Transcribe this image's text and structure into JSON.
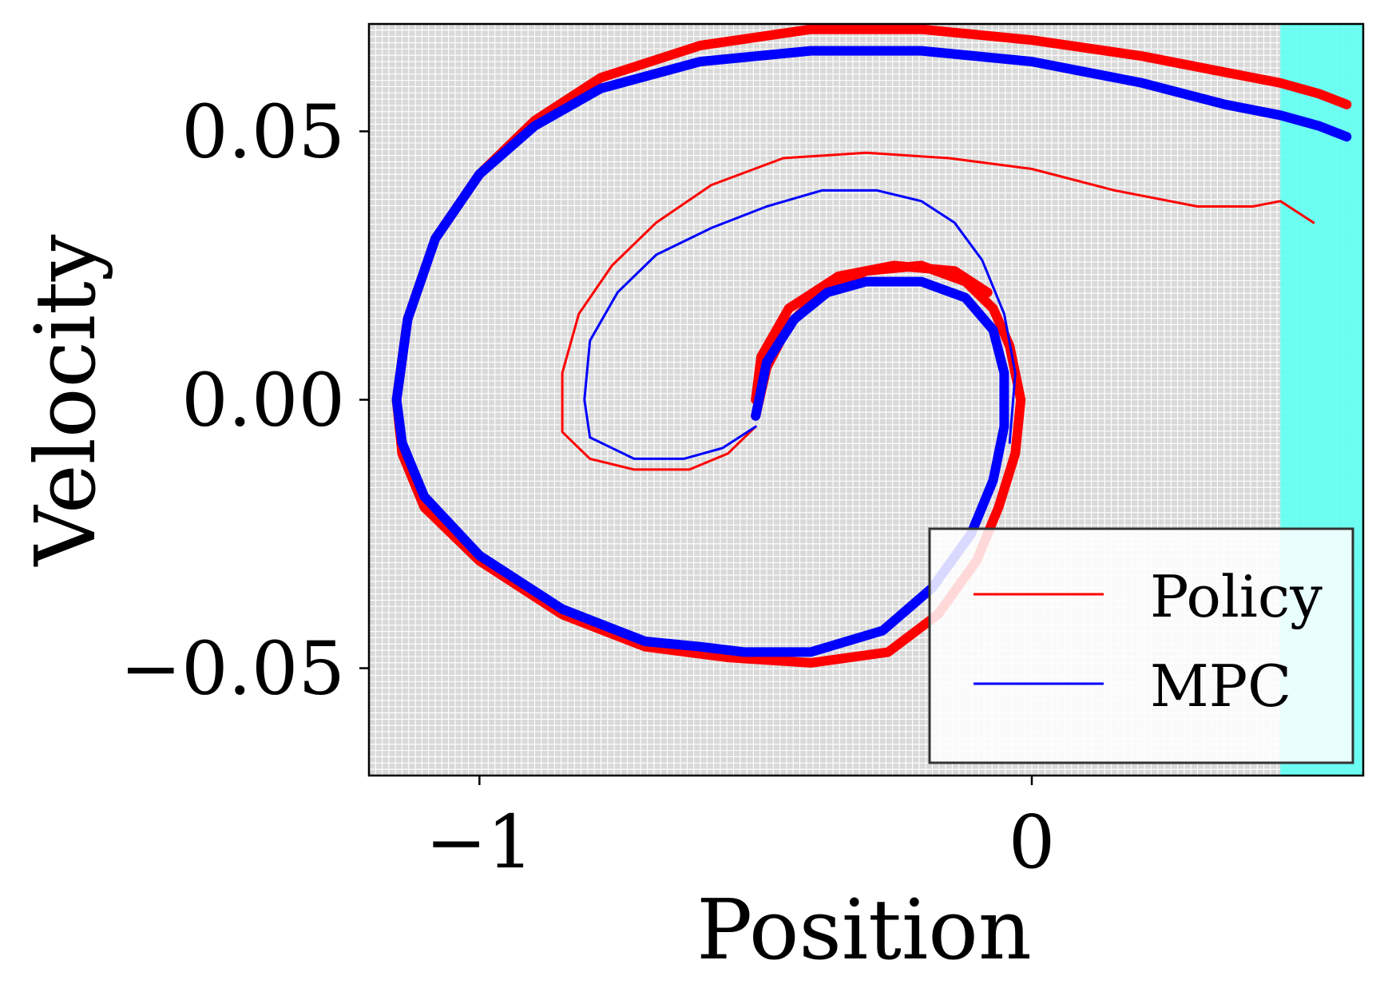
{
  "chart_data": {
    "type": "line",
    "title": "",
    "xlabel": "Position",
    "ylabel": "Velocity",
    "xlim": [
      -1.2,
      0.6
    ],
    "ylim": [
      -0.07,
      0.07
    ],
    "xticks": [
      {
        "value": -1,
        "label": "−1"
      },
      {
        "value": 0,
        "label": "0"
      }
    ],
    "yticks": [
      {
        "value": 0.05,
        "label": "0.05"
      },
      {
        "value": 0.0,
        "label": "0.00"
      },
      {
        "value": -0.05,
        "label": "−0.05"
      }
    ],
    "grid": true,
    "goal_region": {
      "x_from": 0.45,
      "x_to": 0.6,
      "color": "#66fff2"
    },
    "legend": {
      "location": "lower-right"
    },
    "series": [
      {
        "name": "Policy",
        "color": "#ff0000",
        "trajectories": [
          {
            "weight": "bold",
            "points": [
              [
                -0.5,
                -0.003
              ],
              [
                -0.48,
                0.006
              ],
              [
                -0.44,
                0.014
              ],
              [
                -0.38,
                0.02
              ],
              [
                -0.3,
                0.024
              ],
              [
                -0.2,
                0.025
              ],
              [
                -0.12,
                0.022
              ],
              [
                -0.07,
                0.017
              ],
              [
                -0.04,
                0.01
              ],
              [
                -0.02,
                0.0
              ],
              [
                -0.03,
                -0.01
              ],
              [
                -0.06,
                -0.02
              ],
              [
                -0.1,
                -0.03
              ],
              [
                -0.17,
                -0.04
              ],
              [
                -0.26,
                -0.047
              ],
              [
                -0.4,
                -0.049
              ],
              [
                -0.55,
                -0.048
              ],
              [
                -0.7,
                -0.046
              ],
              [
                -0.85,
                -0.04
              ],
              [
                -1.0,
                -0.03
              ],
              [
                -1.1,
                -0.02
              ],
              [
                -1.14,
                -0.01
              ],
              [
                -1.15,
                0.0
              ],
              [
                -1.13,
                0.015
              ],
              [
                -1.08,
                0.03
              ],
              [
                -1.0,
                0.042
              ],
              [
                -0.9,
                0.052
              ],
              [
                -0.78,
                0.06
              ],
              [
                -0.6,
                0.066
              ],
              [
                -0.4,
                0.069
              ],
              [
                -0.2,
                0.069
              ],
              [
                0.0,
                0.067
              ],
              [
                0.2,
                0.064
              ],
              [
                0.35,
                0.061
              ],
              [
                0.45,
                0.059
              ],
              [
                0.52,
                0.057
              ],
              [
                0.57,
                0.055
              ]
            ]
          },
          {
            "weight": "bold",
            "points": [
              [
                -0.08,
                0.02
              ],
              [
                -0.14,
                0.024
              ],
              [
                -0.25,
                0.025
              ],
              [
                -0.35,
                0.023
              ],
              [
                -0.44,
                0.017
              ],
              [
                -0.49,
                0.008
              ],
              [
                -0.5,
                0.0
              ]
            ]
          },
          {
            "weight": "thin",
            "points": [
              [
                -0.5,
                -0.005
              ],
              [
                -0.55,
                -0.01
              ],
              [
                -0.62,
                -0.013
              ],
              [
                -0.72,
                -0.013
              ],
              [
                -0.8,
                -0.011
              ],
              [
                -0.85,
                -0.006
              ],
              [
                -0.85,
                0.005
              ],
              [
                -0.82,
                0.016
              ],
              [
                -0.76,
                0.025
              ],
              [
                -0.68,
                0.033
              ],
              [
                -0.58,
                0.04
              ],
              [
                -0.45,
                0.045
              ],
              [
                -0.3,
                0.046
              ],
              [
                -0.15,
                0.045
              ],
              [
                0.0,
                0.043
              ],
              [
                0.15,
                0.039
              ],
              [
                0.3,
                0.036
              ],
              [
                0.4,
                0.036
              ],
              [
                0.45,
                0.037
              ],
              [
                0.51,
                0.033
              ]
            ]
          }
        ]
      },
      {
        "name": "MPC",
        "color": "#0000ff",
        "trajectories": [
          {
            "weight": "bold",
            "points": [
              [
                -0.5,
                -0.003
              ],
              [
                -0.48,
                0.007
              ],
              [
                -0.43,
                0.015
              ],
              [
                -0.37,
                0.02
              ],
              [
                -0.3,
                0.022
              ],
              [
                -0.2,
                0.022
              ],
              [
                -0.12,
                0.019
              ],
              [
                -0.07,
                0.013
              ],
              [
                -0.05,
                0.005
              ],
              [
                -0.05,
                -0.005
              ],
              [
                -0.07,
                -0.015
              ],
              [
                -0.11,
                -0.025
              ],
              [
                -0.18,
                -0.035
              ],
              [
                -0.27,
                -0.043
              ],
              [
                -0.4,
                -0.047
              ],
              [
                -0.52,
                -0.047
              ],
              [
                -0.6,
                -0.046
              ],
              [
                -0.7,
                -0.045
              ],
              [
                -0.85,
                -0.039
              ],
              [
                -1.0,
                -0.029
              ],
              [
                -1.1,
                -0.018
              ],
              [
                -1.14,
                -0.008
              ],
              [
                -1.15,
                0.0
              ],
              [
                -1.13,
                0.015
              ],
              [
                -1.08,
                0.03
              ],
              [
                -1.0,
                0.042
              ],
              [
                -0.9,
                0.051
              ],
              [
                -0.78,
                0.058
              ],
              [
                -0.6,
                0.063
              ],
              [
                -0.4,
                0.065
              ],
              [
                -0.2,
                0.065
              ],
              [
                0.0,
                0.063
              ],
              [
                0.2,
                0.059
              ],
              [
                0.35,
                0.055
              ],
              [
                0.45,
                0.053
              ],
              [
                0.52,
                0.051
              ],
              [
                0.57,
                0.049
              ]
            ]
          },
          {
            "weight": "thin",
            "points": [
              [
                -0.5,
                -0.005
              ],
              [
                -0.56,
                -0.009
              ],
              [
                -0.63,
                -0.011
              ],
              [
                -0.72,
                -0.011
              ],
              [
                -0.8,
                -0.007
              ],
              [
                -0.81,
                0.0
              ],
              [
                -0.8,
                0.011
              ],
              [
                -0.75,
                0.02
              ],
              [
                -0.68,
                0.027
              ],
              [
                -0.58,
                0.032
              ],
              [
                -0.48,
                0.036
              ],
              [
                -0.38,
                0.039
              ],
              [
                -0.28,
                0.039
              ],
              [
                -0.2,
                0.037
              ],
              [
                -0.14,
                0.033
              ],
              [
                -0.09,
                0.026
              ],
              [
                -0.05,
                0.016
              ],
              [
                -0.03,
                0.005
              ],
              [
                -0.04,
                -0.008
              ]
            ]
          }
        ]
      }
    ]
  }
}
